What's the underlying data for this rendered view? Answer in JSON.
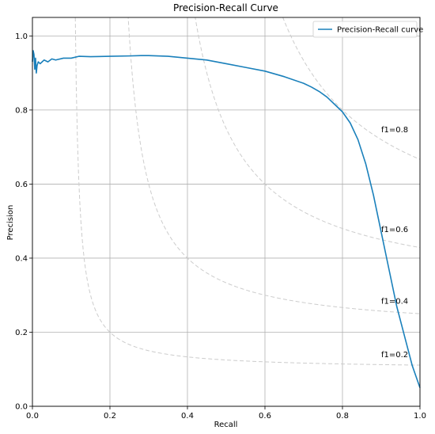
{
  "chart_data": {
    "type": "line",
    "title": "Precision-Recall Curve",
    "xlabel": "Recall",
    "ylabel": "Precision",
    "xlim": [
      0,
      1
    ],
    "ylim": [
      0,
      1.05
    ],
    "x_ticks": [
      0.0,
      0.2,
      0.4,
      0.6,
      0.8,
      1.0
    ],
    "x_tick_labels": [
      "0.0",
      "0.2",
      "0.4",
      "0.6",
      "0.8",
      "1.0"
    ],
    "y_ticks": [
      0.0,
      0.2,
      0.4,
      0.6,
      0.8,
      1.0
    ],
    "y_tick_labels": [
      "0.0",
      "0.2",
      "0.4",
      "0.6",
      "0.8",
      "1.0"
    ],
    "grid": true,
    "legend": {
      "placement": "upper right",
      "entries": [
        "Precision-Recall curve"
      ]
    },
    "colors": {
      "series": "#1a80bb",
      "iso_f1": "#cccccc",
      "grid": "#b0b0b0"
    },
    "series": [
      {
        "name": "Precision-Recall curve",
        "x": [
          0.0,
          0.002,
          0.004,
          0.006,
          0.008,
          0.01,
          0.012,
          0.015,
          0.02,
          0.025,
          0.03,
          0.04,
          0.05,
          0.06,
          0.08,
          0.1,
          0.12,
          0.15,
          0.2,
          0.25,
          0.28,
          0.3,
          0.35,
          0.4,
          0.45,
          0.5,
          0.55,
          0.6,
          0.65,
          0.7,
          0.72,
          0.74,
          0.76,
          0.78,
          0.8,
          0.82,
          0.84,
          0.86,
          0.88,
          0.9,
          0.92,
          0.94,
          0.96,
          0.98,
          0.99,
          1.0
        ],
        "y": [
          0.93,
          0.96,
          0.95,
          0.91,
          0.94,
          0.9,
          0.92,
          0.93,
          0.925,
          0.93,
          0.935,
          0.93,
          0.938,
          0.935,
          0.94,
          0.94,
          0.945,
          0.944,
          0.945,
          0.946,
          0.947,
          0.947,
          0.945,
          0.94,
          0.935,
          0.925,
          0.915,
          0.905,
          0.89,
          0.872,
          0.862,
          0.85,
          0.835,
          0.815,
          0.795,
          0.765,
          0.72,
          0.655,
          0.57,
          0.47,
          0.37,
          0.27,
          0.19,
          0.11,
          0.08,
          0.05
        ]
      }
    ],
    "iso_f1": [
      {
        "f1": 0.2,
        "label": "f1=0.2"
      },
      {
        "f1": 0.4,
        "label": "f1=0.4"
      },
      {
        "f1": 0.6,
        "label": "f1=0.6"
      },
      {
        "f1": 0.8,
        "label": "f1=0.8"
      }
    ]
  }
}
